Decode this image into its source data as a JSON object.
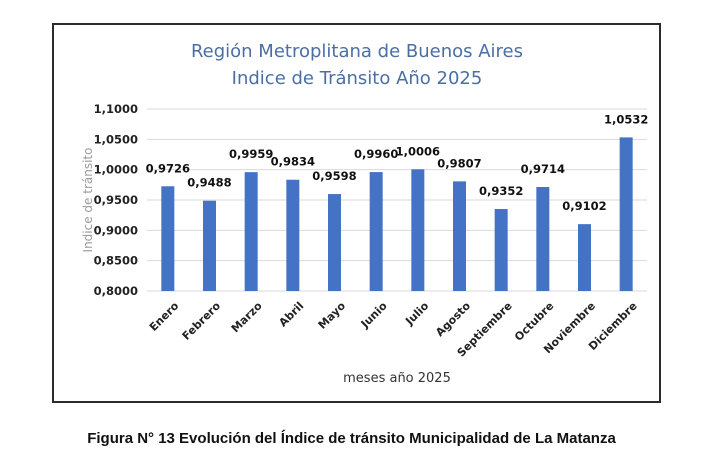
{
  "chart_data": {
    "type": "bar",
    "title": [
      "Región Metroplitana de Buenos Aires",
      "Indice de Tránsito Año 2025"
    ],
    "xlabel": "meses año 2025",
    "ylabel": "Indice de tránsito",
    "ylim": [
      0.8,
      1.1
    ],
    "yticks": [
      0.8,
      0.85,
      0.9,
      0.95,
      1.0,
      1.05,
      1.1
    ],
    "ytick_labels": [
      "0,8000",
      "0,8500",
      "0,9000",
      "0,9500",
      "1,0000",
      "1,0500",
      "1,1000"
    ],
    "grid": true,
    "legend": "none",
    "bar_color": "#4472c4",
    "categories": [
      "Enero",
      "Febrero",
      "Marzo",
      "Abril",
      "Mayo",
      "Junio",
      "Julio",
      "Agosto",
      "Septiembre",
      "Octubre",
      "Noviembre",
      "Diciembre"
    ],
    "values": [
      0.9726,
      0.9488,
      0.9959,
      0.9834,
      0.9598,
      0.996,
      1.0006,
      0.9807,
      0.9352,
      0.9714,
      0.9102,
      1.0532
    ],
    "data_labels": [
      "0,9726",
      "0,9488",
      "0,9959",
      "0,9834",
      "0,9598",
      "0,9960",
      "1,0006",
      "0,9807",
      "0,9352",
      "0,9714",
      "0,9102",
      "1,0532"
    ]
  },
  "caption": "Figura N° 13 Evolución del Índice de tránsito Municipalidad de La Matanza"
}
